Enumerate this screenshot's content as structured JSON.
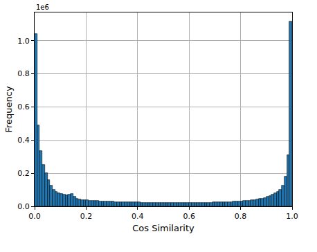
{
  "chart_data": {
    "type": "histogram",
    "x_label": "Cos Similarity",
    "y_label": "Frequency",
    "annotations": [
      "1e6"
    ],
    "color": "#1f77b4",
    "grid": true,
    "bins": [
      0.0,
      0.01,
      0.02,
      0.03,
      0.04,
      0.05,
      0.06,
      0.07,
      0.08,
      0.09,
      0.1,
      0.11,
      0.12,
      0.13,
      0.14,
      0.15,
      0.16,
      0.17,
      0.18,
      0.19,
      0.2,
      0.21,
      0.22,
      0.23,
      0.24,
      0.25,
      0.26,
      0.27,
      0.28,
      0.29,
      0.3,
      0.31,
      0.32,
      0.33,
      0.34,
      0.35,
      0.36,
      0.37,
      0.38,
      0.39,
      0.4,
      0.41,
      0.42,
      0.43,
      0.44,
      0.45,
      0.46,
      0.47,
      0.48,
      0.49,
      0.5,
      0.51,
      0.52,
      0.53,
      0.54,
      0.55,
      0.56,
      0.57,
      0.58,
      0.59,
      0.6,
      0.61,
      0.62,
      0.63,
      0.64,
      0.65,
      0.66,
      0.67,
      0.68,
      0.69,
      0.7,
      0.71,
      0.72,
      0.73,
      0.74,
      0.75,
      0.76,
      0.77,
      0.78,
      0.79,
      0.8,
      0.81,
      0.82,
      0.83,
      0.84,
      0.85,
      0.86,
      0.87,
      0.88,
      0.89,
      0.9,
      0.91,
      0.92,
      0.93,
      0.94,
      0.95,
      0.96,
      0.97,
      0.98,
      0.99,
      1.0
    ],
    "values": [
      1.04,
      0.49,
      0.335,
      0.25,
      0.2,
      0.16,
      0.125,
      0.1,
      0.088,
      0.08,
      0.075,
      0.07,
      0.068,
      0.072,
      0.074,
      0.058,
      0.048,
      0.042,
      0.039,
      0.037,
      0.036,
      0.035,
      0.034,
      0.033,
      0.032,
      0.031,
      0.03,
      0.03,
      0.029,
      0.028,
      0.028,
      0.027,
      0.027,
      0.026,
      0.026,
      0.025,
      0.025,
      0.025,
      0.024,
      0.024,
      0.024,
      0.023,
      0.023,
      0.023,
      0.022,
      0.022,
      0.022,
      0.022,
      0.021,
      0.021,
      0.021,
      0.021,
      0.021,
      0.02,
      0.02,
      0.02,
      0.02,
      0.021,
      0.021,
      0.021,
      0.021,
      0.021,
      0.022,
      0.022,
      0.022,
      0.022,
      0.023,
      0.023,
      0.023,
      0.024,
      0.024,
      0.024,
      0.025,
      0.025,
      0.026,
      0.026,
      0.027,
      0.028,
      0.029,
      0.03,
      0.031,
      0.032,
      0.034,
      0.035,
      0.037,
      0.039,
      0.042,
      0.045,
      0.048,
      0.052,
      0.057,
      0.063,
      0.07,
      0.078,
      0.088,
      0.1,
      0.125,
      0.18,
      0.31,
      1.115
    ],
    "xlim": [
      0,
      1
    ],
    "xticks": [
      {
        "value": 0,
        "label": "0.0"
      },
      0.2,
      0.4,
      0.6,
      0.8,
      {
        "value": 1,
        "label": "1.0"
      }
    ],
    "ylim": [
      0,
      1.17
    ],
    "yticks": [
      {
        "value": 0,
        "label": "0.0"
      },
      0.2,
      0.4,
      0.6,
      0.8,
      {
        "value": 1,
        "label": "1.0"
      }
    ]
  }
}
